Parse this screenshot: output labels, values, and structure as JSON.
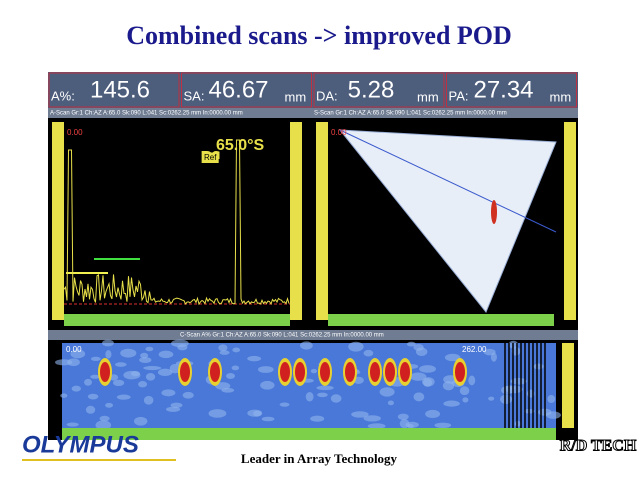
{
  "header": {
    "title": "Combined scans -> improved POD"
  },
  "readouts": [
    {
      "label": "A%:",
      "value": "145.6"
    },
    {
      "label": "SA:",
      "value": "46.67",
      "unit": "mm"
    },
    {
      "label": "DA:",
      "value": "5.28",
      "unit": "mm"
    },
    {
      "label": "PA:",
      "value": "27.34",
      "unit": "mm"
    }
  ],
  "panels": {
    "ascan": {
      "status": "A-Scan Gr:1 Ch:AZ A:65.0 Sk:090 L:041 Sc:0262.25 mm In:0000.00 mm",
      "angle": "65.0°S",
      "ref": "Ref",
      "start": "0.00"
    },
    "sscan": {
      "status": "S-Scan Gr:1 Ch:AZ A:65.0 Sk:090 L:041 Sc:0262.25 mm In:0000.00 mm",
      "start": "0.00"
    },
    "cscan": {
      "status": "C-Scan A% Gr:1 Ch:AZ A:65.0 Sk:090 L:041 Sc:0262.25 mm In:0000.00 mm",
      "start": "0.00",
      "cursor": "262.00"
    }
  },
  "footer": {
    "logo": "OLYMPUS",
    "tagline": "Leader in Array Technology",
    "partner_logo": "R/D TECH"
  }
}
